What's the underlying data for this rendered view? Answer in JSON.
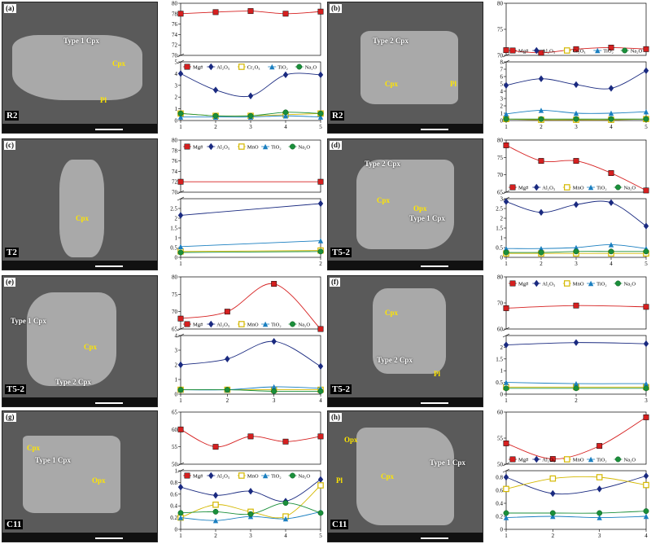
{
  "panels": [
    {
      "id": "a",
      "tag": "(a)",
      "sample": "R2",
      "labels": [
        "Type 1 Cpx",
        "Cpx",
        "Pl"
      ],
      "chart_data": {
        "type": "line",
        "x": [
          1,
          2,
          3,
          4,
          5
        ],
        "xticks": [
          "1",
          "2",
          "3",
          "4",
          "5"
        ],
        "upper": {
          "ylim": [
            70,
            80
          ],
          "yticks": [
            "70",
            "72",
            "74",
            "76",
            "78",
            "80"
          ]
        },
        "lower": {
          "ylim": [
            0,
            5
          ],
          "yticks": [
            "0",
            "1",
            "2",
            "3",
            "4",
            "5"
          ]
        },
        "series": [
          {
            "name": "Mg#",
            "panel": "upper",
            "color": "#d62020",
            "marker": "square",
            "values": [
              78.0,
              78.3,
              78.5,
              78.0,
              78.4
            ]
          },
          {
            "name": "Al2O3",
            "panel": "lower",
            "color": "#1a2a80",
            "marker": "diamond",
            "values": [
              4.0,
              2.6,
              2.1,
              3.9,
              3.9
            ]
          },
          {
            "name": "Cr2O3",
            "panel": "lower",
            "color": "#d4b800",
            "marker": "square-open",
            "values": [
              0.6,
              0.4,
              0.4,
              0.5,
              0.6
            ]
          },
          {
            "name": "TiO2",
            "panel": "lower",
            "color": "#1a7fc0",
            "marker": "triangle",
            "values": [
              0.3,
              0.3,
              0.3,
              0.4,
              0.3
            ]
          },
          {
            "name": "Na2O",
            "panel": "lower",
            "color": "#1a8f3a",
            "marker": "circle",
            "values": [
              0.6,
              0.4,
              0.4,
              0.7,
              0.6
            ]
          }
        ]
      }
    },
    {
      "id": "b",
      "tag": "(b)",
      "sample": "R2",
      "labels": [
        "Type 2 Cpx",
        "Cpx",
        "Pl"
      ],
      "chart_data": {
        "type": "line",
        "x": [
          1,
          2,
          3,
          4,
          5
        ],
        "xticks": [
          "1",
          "2",
          "3",
          "4",
          "5"
        ],
        "upper": {
          "ylim": [
            70,
            80
          ],
          "yticks": [
            "70",
            "75",
            "80"
          ]
        },
        "lower": {
          "ylim": [
            0,
            8
          ],
          "yticks": [
            "0",
            "1",
            "2",
            "3",
            "4",
            "5",
            "6",
            "7",
            "8"
          ]
        },
        "series": [
          {
            "name": "Mg#",
            "panel": "upper",
            "color": "#d62020",
            "marker": "square",
            "values": [
              71.0,
              70.5,
              71.2,
              71.5,
              71.2
            ]
          },
          {
            "name": "Al2O3",
            "panel": "lower",
            "color": "#1a2a80",
            "marker": "diamond",
            "values": [
              4.8,
              5.7,
              4.9,
              4.4,
              6.8
            ]
          },
          {
            "name": "Cr2O3",
            "panel": "lower",
            "color": "#d4b800",
            "marker": "square-open",
            "values": [
              0.2,
              0.1,
              0.1,
              0.1,
              0.2
            ]
          },
          {
            "name": "TiO2",
            "panel": "lower",
            "color": "#1a7fc0",
            "marker": "triangle",
            "values": [
              0.9,
              1.4,
              1.0,
              1.0,
              1.2
            ]
          },
          {
            "name": "Na2O",
            "panel": "lower",
            "color": "#1a8f3a",
            "marker": "circle",
            "values": [
              0.2,
              0.2,
              0.2,
              0.2,
              0.2
            ]
          }
        ]
      }
    },
    {
      "id": "c",
      "tag": "(c)",
      "sample": "T2",
      "labels": [
        "Cpx"
      ],
      "chart_data": {
        "type": "line",
        "x": [
          1,
          2
        ],
        "xticks": [
          "1",
          "2"
        ],
        "upper": {
          "ylim": [
            70,
            80
          ],
          "yticks": [
            "70",
            "72",
            "74",
            "76",
            "78",
            "80"
          ]
        },
        "lower": {
          "ylim": [
            0,
            3
          ],
          "yticks": [
            "0",
            "0.5",
            "1",
            "1.5",
            "2",
            "2.5"
          ]
        },
        "series": [
          {
            "name": "Mg#",
            "panel": "upper",
            "color": "#d62020",
            "marker": "square",
            "values": [
              72.0,
              72.0
            ]
          },
          {
            "name": "Al2O3",
            "panel": "lower",
            "color": "#1a2a80",
            "marker": "diamond",
            "values": [
              2.15,
              2.75
            ]
          },
          {
            "name": "MnO",
            "panel": "lower",
            "color": "#d4b800",
            "marker": "square-open",
            "values": [
              0.3,
              0.35
            ]
          },
          {
            "name": "TiO2",
            "panel": "lower",
            "color": "#1a7fc0",
            "marker": "triangle",
            "values": [
              0.55,
              0.85
            ]
          },
          {
            "name": "Na2O",
            "panel": "lower",
            "color": "#1a8f3a",
            "marker": "circle",
            "values": [
              0.25,
              0.3
            ]
          }
        ]
      }
    },
    {
      "id": "d",
      "tag": "(d)",
      "sample": "T5-2",
      "labels": [
        "Type 2 Cpx",
        "Cpx",
        "Opx",
        "Type 1 Cpx"
      ],
      "chart_data": {
        "type": "line",
        "x": [
          1,
          2,
          3,
          4,
          5
        ],
        "xticks": [
          "1",
          "2",
          "3",
          "4",
          "5"
        ],
        "upper": {
          "ylim": [
            65,
            80
          ],
          "yticks": [
            "65",
            "70",
            "75",
            "80"
          ]
        },
        "lower": {
          "ylim": [
            0,
            3
          ],
          "yticks": [
            "0",
            "0.5",
            "1",
            "1.5",
            "2",
            "2.5",
            "3"
          ]
        },
        "series": [
          {
            "name": "Mg#",
            "panel": "upper",
            "color": "#d62020",
            "marker": "square",
            "values": [
              78.5,
              74.0,
              74.0,
              70.5,
              65.5
            ]
          },
          {
            "name": "Al2O3",
            "panel": "lower",
            "color": "#1a2a80",
            "marker": "diamond",
            "values": [
              2.85,
              2.3,
              2.7,
              2.8,
              1.6
            ]
          },
          {
            "name": "MnO",
            "panel": "lower",
            "color": "#d4b800",
            "marker": "square-open",
            "values": [
              0.2,
              0.2,
              0.2,
              0.2,
              0.2
            ]
          },
          {
            "name": "TiO2",
            "panel": "lower",
            "color": "#1a7fc0",
            "marker": "triangle",
            "values": [
              0.45,
              0.45,
              0.5,
              0.65,
              0.45
            ]
          },
          {
            "name": "Na2O",
            "panel": "lower",
            "color": "#1a8f3a",
            "marker": "circle",
            "values": [
              0.25,
              0.25,
              0.3,
              0.3,
              0.3
            ]
          }
        ]
      }
    },
    {
      "id": "e",
      "tag": "(e)",
      "sample": "T5-2",
      "labels": [
        "Type 1 Cpx",
        "Cpx",
        "Type 2 Cpx"
      ],
      "chart_data": {
        "type": "line",
        "x": [
          1,
          2,
          3,
          4
        ],
        "xticks": [
          "1",
          "2",
          "3",
          "4"
        ],
        "upper": {
          "ylim": [
            65,
            80
          ],
          "yticks": [
            "65",
            "70",
            "75",
            "80"
          ]
        },
        "lower": {
          "ylim": [
            0,
            4
          ],
          "yticks": [
            "0",
            "1",
            "2",
            "3",
            "4"
          ]
        },
        "series": [
          {
            "name": "Mg#",
            "panel": "upper",
            "color": "#d62020",
            "marker": "square",
            "values": [
              68.0,
              70.0,
              78.0,
              65.0
            ]
          },
          {
            "name": "Al2O3",
            "panel": "lower",
            "color": "#1a2a80",
            "marker": "diamond",
            "values": [
              2.0,
              2.4,
              3.6,
              1.9
            ]
          },
          {
            "name": "MnO",
            "panel": "lower",
            "color": "#d4b800",
            "marker": "square-open",
            "values": [
              0.3,
              0.3,
              0.3,
              0.3
            ]
          },
          {
            "name": "TiO2",
            "panel": "lower",
            "color": "#1a7fc0",
            "marker": "triangle",
            "values": [
              0.3,
              0.3,
              0.5,
              0.4
            ]
          },
          {
            "name": "Na2O",
            "panel": "lower",
            "color": "#1a8f3a",
            "marker": "circle",
            "values": [
              0.3,
              0.3,
              0.2,
              0.2
            ]
          }
        ]
      }
    },
    {
      "id": "f",
      "tag": "(f)",
      "sample": "T5-2",
      "labels": [
        "Cpx",
        "Type 2 Cpx",
        "Pl"
      ],
      "chart_data": {
        "type": "line",
        "x": [
          1,
          2,
          3
        ],
        "xticks": [
          "1",
          "2",
          "3"
        ],
        "upper": {
          "ylim": [
            60,
            80
          ],
          "yticks": [
            "60",
            "70",
            "80"
          ]
        },
        "lower": {
          "ylim": [
            0,
            2.5
          ],
          "yticks": [
            "0",
            "0.5",
            "1",
            "1.5",
            "2"
          ]
        },
        "series": [
          {
            "name": "Mg#",
            "panel": "upper",
            "color": "#d62020",
            "marker": "square",
            "values": [
              68.0,
              69.0,
              68.5
            ]
          },
          {
            "name": "Al2O3",
            "panel": "lower",
            "color": "#1a2a80",
            "marker": "diamond",
            "values": [
              2.1,
              2.2,
              2.15
            ]
          },
          {
            "name": "MnO",
            "panel": "lower",
            "color": "#d4b800",
            "marker": "square-open",
            "values": [
              0.3,
              0.3,
              0.3
            ]
          },
          {
            "name": "TiO2",
            "panel": "lower",
            "color": "#1a7fc0",
            "marker": "triangle",
            "values": [
              0.5,
              0.45,
              0.45
            ]
          },
          {
            "name": "Na2O",
            "panel": "lower",
            "color": "#1a8f3a",
            "marker": "circle",
            "values": [
              0.25,
              0.25,
              0.25
            ]
          }
        ]
      }
    },
    {
      "id": "g",
      "tag": "(g)",
      "sample": "C11",
      "labels": [
        "Cpx",
        "Type 1 Cpx",
        "Opx"
      ],
      "chart_data": {
        "type": "line",
        "x": [
          1,
          2,
          3,
          4,
          5
        ],
        "xticks": [
          "1",
          "2",
          "3",
          "4",
          "5"
        ],
        "upper": {
          "ylim": [
            50,
            65
          ],
          "yticks": [
            "50",
            "55",
            "60",
            "65"
          ]
        },
        "lower": {
          "ylim": [
            0,
            1
          ],
          "yticks": [
            "0",
            "0.2",
            "0.4",
            "0.6",
            "0.8",
            "1"
          ]
        },
        "series": [
          {
            "name": "Mg#",
            "panel": "upper",
            "color": "#d62020",
            "marker": "square",
            "values": [
              60.0,
              55.0,
              58.0,
              56.5,
              58.0
            ]
          },
          {
            "name": "Al2O3",
            "panel": "lower",
            "color": "#1a2a80",
            "marker": "diamond",
            "values": [
              0.72,
              0.58,
              0.65,
              0.48,
              0.85
            ]
          },
          {
            "name": "MnO",
            "panel": "lower",
            "color": "#d4b800",
            "marker": "square-open",
            "values": [
              0.2,
              0.42,
              0.3,
              0.22,
              0.75
            ]
          },
          {
            "name": "TiO2",
            "panel": "lower",
            "color": "#1a7fc0",
            "marker": "triangle",
            "values": [
              0.2,
              0.15,
              0.22,
              0.18,
              0.3
            ]
          },
          {
            "name": "Na2O",
            "panel": "lower",
            "color": "#1a8f3a",
            "marker": "circle",
            "values": [
              0.28,
              0.3,
              0.26,
              0.45,
              0.28
            ]
          }
        ]
      }
    },
    {
      "id": "h",
      "tag": "(h)",
      "sample": "C11",
      "labels": [
        "Opx",
        "Cpx",
        "Type 1 Cpx",
        "Pl"
      ],
      "chart_data": {
        "type": "line",
        "x": [
          1,
          2,
          3,
          4
        ],
        "xticks": [
          "1",
          "2",
          "3",
          "4"
        ],
        "upper": {
          "ylim": [
            50,
            60
          ],
          "yticks": [
            "50",
            "55",
            "60"
          ]
        },
        "lower": {
          "ylim": [
            0,
            0.9
          ],
          "yticks": [
            "0",
            "0.2",
            "0.4",
            "0.6",
            "0.8"
          ]
        },
        "series": [
          {
            "name": "Mg#",
            "panel": "upper",
            "color": "#d62020",
            "marker": "square",
            "values": [
              54.0,
              51.0,
              53.5,
              59.0
            ]
          },
          {
            "name": "Al2O3",
            "panel": "lower",
            "color": "#1a2a80",
            "marker": "diamond",
            "values": [
              0.8,
              0.55,
              0.62,
              0.82
            ]
          },
          {
            "name": "MnO",
            "panel": "lower",
            "color": "#d4b800",
            "marker": "square-open",
            "values": [
              0.62,
              0.78,
              0.8,
              0.68
            ]
          },
          {
            "name": "TiO2",
            "panel": "lower",
            "color": "#1a7fc0",
            "marker": "triangle",
            "values": [
              0.18,
              0.2,
              0.18,
              0.2
            ]
          },
          {
            "name": "Na2O",
            "panel": "lower",
            "color": "#1a8f3a",
            "marker": "circle",
            "values": [
              0.25,
              0.25,
              0.25,
              0.28
            ]
          }
        ]
      }
    }
  ],
  "legend_labels": {
    "Mg#": "Mg#",
    "Al2O3": "Al₂O₃",
    "Cr2O3": "Cr₂O₃",
    "MnO": "MnO",
    "TiO2": "TiO₂",
    "Na2O": "Na₂O"
  }
}
